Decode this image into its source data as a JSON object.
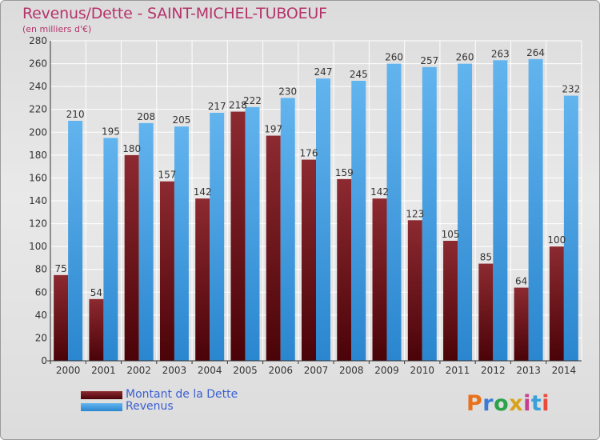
{
  "header": {
    "title": "Revenus/Dette - SAINT-MICHEL-TUBOEUF",
    "subtitle": "(en milliers d'€)"
  },
  "legend": {
    "items": [
      {
        "label": "Montant de la Dette",
        "color": "#6a0f16"
      },
      {
        "label": "Revenus",
        "color": "#3d9be0"
      }
    ]
  },
  "logo": {
    "text": "Proxiti",
    "colors": [
      "#e8721c",
      "#3a7bd5",
      "#2aa34a",
      "#d9a21b",
      "#c83e8e",
      "#3aa0d9",
      "#e84b3c"
    ]
  },
  "chart_data": {
    "type": "bar",
    "categories": [
      "2000",
      "2001",
      "2002",
      "2003",
      "2004",
      "2005",
      "2006",
      "2007",
      "2008",
      "2009",
      "2010",
      "2011",
      "2012",
      "2013",
      "2014"
    ],
    "series": [
      {
        "name": "Montant de la Dette",
        "color": "#6a0f16",
        "values": [
          75,
          54,
          180,
          157,
          142,
          218,
          197,
          176,
          159,
          142,
          123,
          105,
          85,
          64,
          100
        ]
      },
      {
        "name": "Revenus",
        "color": "#3d9be0",
        "values": [
          210,
          195,
          208,
          205,
          217,
          222,
          230,
          247,
          245,
          260,
          257,
          260,
          263,
          264,
          232
        ]
      }
    ],
    "ylim": [
      0,
      280
    ],
    "yticks": [
      0,
      20,
      40,
      60,
      80,
      100,
      120,
      140,
      160,
      180,
      200,
      220,
      240,
      260,
      280
    ],
    "grid": true,
    "legend_position": "bottom-left"
  }
}
